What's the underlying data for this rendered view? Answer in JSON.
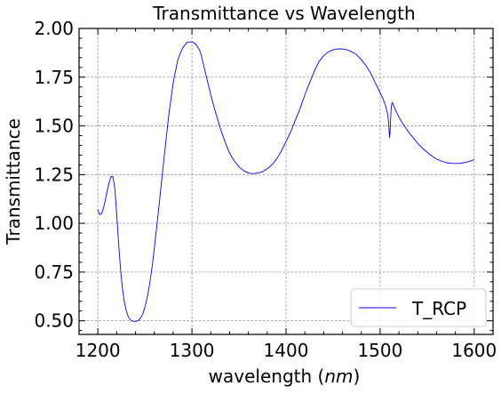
{
  "chart_data": {
    "type": "line",
    "title": "Transmittance vs Wavelength",
    "xlabel_main": "wavelength (",
    "xlabel_unit": "nm",
    "xlabel_close": ")",
    "ylabel": "Transmittance",
    "xlim": [
      1180,
      1620
    ],
    "ylim": [
      0.43,
      2.0
    ],
    "xticks": [
      1200,
      1300,
      1400,
      1500,
      1600
    ],
    "yticks": [
      0.5,
      0.75,
      1.0,
      1.25,
      1.5,
      1.75,
      2.0
    ],
    "ytick_labels": [
      "0.50",
      "0.75",
      "1.00",
      "1.25",
      "1.50",
      "1.75",
      "2.00"
    ],
    "grid": true,
    "legend_position": "bottom-right",
    "series": [
      {
        "name": "T_RCP",
        "color": "#0000ff",
        "x": [
          1200,
          1202,
          1204,
          1206,
          1208,
          1210,
          1212,
          1214,
          1216,
          1218,
          1220,
          1222,
          1224,
          1226,
          1228,
          1230,
          1232,
          1234,
          1236,
          1238,
          1240,
          1242,
          1244,
          1246,
          1248,
          1250,
          1252,
          1254,
          1256,
          1258,
          1260,
          1265,
          1270,
          1275,
          1280,
          1285,
          1290,
          1295,
          1300,
          1303,
          1306,
          1308,
          1310,
          1312,
          1314,
          1316,
          1318,
          1320,
          1325,
          1330,
          1335,
          1340,
          1345,
          1350,
          1355,
          1360,
          1365,
          1370,
          1375,
          1380,
          1385,
          1390,
          1395,
          1400,
          1405,
          1410,
          1415,
          1420,
          1425,
          1430,
          1435,
          1440,
          1445,
          1450,
          1455,
          1460,
          1465,
          1468,
          1470,
          1475,
          1480,
          1485,
          1490,
          1495,
          1500,
          1503,
          1506,
          1508,
          1509,
          1510,
          1510.5,
          1511,
          1511.5,
          1512,
          1512.5,
          1513,
          1514,
          1516,
          1520,
          1525,
          1530,
          1535,
          1540,
          1545,
          1550,
          1555,
          1560,
          1565,
          1570,
          1575,
          1580,
          1585,
          1590,
          1595,
          1600
        ],
        "values": [
          1.07,
          1.045,
          1.05,
          1.08,
          1.12,
          1.17,
          1.21,
          1.24,
          1.24,
          1.18,
          1.05,
          0.9,
          0.77,
          0.67,
          0.6,
          0.555,
          0.525,
          0.508,
          0.5,
          0.497,
          0.497,
          0.499,
          0.505,
          0.518,
          0.54,
          0.57,
          0.61,
          0.66,
          0.72,
          0.79,
          0.87,
          1.09,
          1.32,
          1.54,
          1.72,
          1.84,
          1.9,
          1.93,
          1.93,
          1.925,
          1.905,
          1.89,
          1.86,
          1.82,
          1.78,
          1.74,
          1.7,
          1.66,
          1.57,
          1.49,
          1.42,
          1.36,
          1.32,
          1.29,
          1.27,
          1.258,
          1.255,
          1.258,
          1.265,
          1.28,
          1.3,
          1.33,
          1.37,
          1.42,
          1.47,
          1.53,
          1.59,
          1.66,
          1.72,
          1.78,
          1.83,
          1.86,
          1.88,
          1.89,
          1.895,
          1.895,
          1.89,
          1.885,
          1.88,
          1.865,
          1.84,
          1.81,
          1.77,
          1.72,
          1.67,
          1.64,
          1.6,
          1.56,
          1.52,
          1.44,
          1.46,
          1.52,
          1.57,
          1.6,
          1.615,
          1.62,
          1.61,
          1.585,
          1.545,
          1.505,
          1.47,
          1.44,
          1.41,
          1.385,
          1.365,
          1.345,
          1.33,
          1.32,
          1.312,
          1.308,
          1.307,
          1.308,
          1.312,
          1.318,
          1.327
        ]
      }
    ]
  }
}
